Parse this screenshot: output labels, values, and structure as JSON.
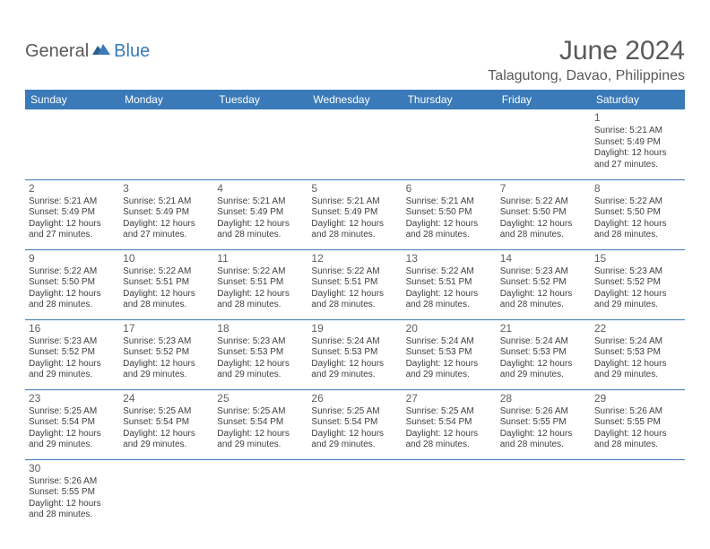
{
  "logo": {
    "part1": "General",
    "part2": "Blue"
  },
  "header": {
    "title": "June 2024",
    "location": "Talagutong, Davao, Philippines"
  },
  "colors": {
    "header_bg": "#3a7ab8",
    "header_text": "#ffffff",
    "row_border": "#3a7ab8",
    "text": "#404040",
    "title_color": "#595959"
  },
  "day_headers": [
    "Sunday",
    "Monday",
    "Tuesday",
    "Wednesday",
    "Thursday",
    "Friday",
    "Saturday"
  ],
  "weeks": [
    [
      null,
      null,
      null,
      null,
      null,
      null,
      {
        "d": "1",
        "sr": "Sunrise: 5:21 AM",
        "ss": "Sunset: 5:49 PM",
        "dl1": "Daylight: 12 hours",
        "dl2": "and 27 minutes."
      }
    ],
    [
      {
        "d": "2",
        "sr": "Sunrise: 5:21 AM",
        "ss": "Sunset: 5:49 PM",
        "dl1": "Daylight: 12 hours",
        "dl2": "and 27 minutes."
      },
      {
        "d": "3",
        "sr": "Sunrise: 5:21 AM",
        "ss": "Sunset: 5:49 PM",
        "dl1": "Daylight: 12 hours",
        "dl2": "and 27 minutes."
      },
      {
        "d": "4",
        "sr": "Sunrise: 5:21 AM",
        "ss": "Sunset: 5:49 PM",
        "dl1": "Daylight: 12 hours",
        "dl2": "and 28 minutes."
      },
      {
        "d": "5",
        "sr": "Sunrise: 5:21 AM",
        "ss": "Sunset: 5:49 PM",
        "dl1": "Daylight: 12 hours",
        "dl2": "and 28 minutes."
      },
      {
        "d": "6",
        "sr": "Sunrise: 5:21 AM",
        "ss": "Sunset: 5:50 PM",
        "dl1": "Daylight: 12 hours",
        "dl2": "and 28 minutes."
      },
      {
        "d": "7",
        "sr": "Sunrise: 5:22 AM",
        "ss": "Sunset: 5:50 PM",
        "dl1": "Daylight: 12 hours",
        "dl2": "and 28 minutes."
      },
      {
        "d": "8",
        "sr": "Sunrise: 5:22 AM",
        "ss": "Sunset: 5:50 PM",
        "dl1": "Daylight: 12 hours",
        "dl2": "and 28 minutes."
      }
    ],
    [
      {
        "d": "9",
        "sr": "Sunrise: 5:22 AM",
        "ss": "Sunset: 5:50 PM",
        "dl1": "Daylight: 12 hours",
        "dl2": "and 28 minutes."
      },
      {
        "d": "10",
        "sr": "Sunrise: 5:22 AM",
        "ss": "Sunset: 5:51 PM",
        "dl1": "Daylight: 12 hours",
        "dl2": "and 28 minutes."
      },
      {
        "d": "11",
        "sr": "Sunrise: 5:22 AM",
        "ss": "Sunset: 5:51 PM",
        "dl1": "Daylight: 12 hours",
        "dl2": "and 28 minutes."
      },
      {
        "d": "12",
        "sr": "Sunrise: 5:22 AM",
        "ss": "Sunset: 5:51 PM",
        "dl1": "Daylight: 12 hours",
        "dl2": "and 28 minutes."
      },
      {
        "d": "13",
        "sr": "Sunrise: 5:22 AM",
        "ss": "Sunset: 5:51 PM",
        "dl1": "Daylight: 12 hours",
        "dl2": "and 28 minutes."
      },
      {
        "d": "14",
        "sr": "Sunrise: 5:23 AM",
        "ss": "Sunset: 5:52 PM",
        "dl1": "Daylight: 12 hours",
        "dl2": "and 28 minutes."
      },
      {
        "d": "15",
        "sr": "Sunrise: 5:23 AM",
        "ss": "Sunset: 5:52 PM",
        "dl1": "Daylight: 12 hours",
        "dl2": "and 29 minutes."
      }
    ],
    [
      {
        "d": "16",
        "sr": "Sunrise: 5:23 AM",
        "ss": "Sunset: 5:52 PM",
        "dl1": "Daylight: 12 hours",
        "dl2": "and 29 minutes."
      },
      {
        "d": "17",
        "sr": "Sunrise: 5:23 AM",
        "ss": "Sunset: 5:52 PM",
        "dl1": "Daylight: 12 hours",
        "dl2": "and 29 minutes."
      },
      {
        "d": "18",
        "sr": "Sunrise: 5:23 AM",
        "ss": "Sunset: 5:53 PM",
        "dl1": "Daylight: 12 hours",
        "dl2": "and 29 minutes."
      },
      {
        "d": "19",
        "sr": "Sunrise: 5:24 AM",
        "ss": "Sunset: 5:53 PM",
        "dl1": "Daylight: 12 hours",
        "dl2": "and 29 minutes."
      },
      {
        "d": "20",
        "sr": "Sunrise: 5:24 AM",
        "ss": "Sunset: 5:53 PM",
        "dl1": "Daylight: 12 hours",
        "dl2": "and 29 minutes."
      },
      {
        "d": "21",
        "sr": "Sunrise: 5:24 AM",
        "ss": "Sunset: 5:53 PM",
        "dl1": "Daylight: 12 hours",
        "dl2": "and 29 minutes."
      },
      {
        "d": "22",
        "sr": "Sunrise: 5:24 AM",
        "ss": "Sunset: 5:53 PM",
        "dl1": "Daylight: 12 hours",
        "dl2": "and 29 minutes."
      }
    ],
    [
      {
        "d": "23",
        "sr": "Sunrise: 5:25 AM",
        "ss": "Sunset: 5:54 PM",
        "dl1": "Daylight: 12 hours",
        "dl2": "and 29 minutes."
      },
      {
        "d": "24",
        "sr": "Sunrise: 5:25 AM",
        "ss": "Sunset: 5:54 PM",
        "dl1": "Daylight: 12 hours",
        "dl2": "and 29 minutes."
      },
      {
        "d": "25",
        "sr": "Sunrise: 5:25 AM",
        "ss": "Sunset: 5:54 PM",
        "dl1": "Daylight: 12 hours",
        "dl2": "and 29 minutes."
      },
      {
        "d": "26",
        "sr": "Sunrise: 5:25 AM",
        "ss": "Sunset: 5:54 PM",
        "dl1": "Daylight: 12 hours",
        "dl2": "and 29 minutes."
      },
      {
        "d": "27",
        "sr": "Sunrise: 5:25 AM",
        "ss": "Sunset: 5:54 PM",
        "dl1": "Daylight: 12 hours",
        "dl2": "and 28 minutes."
      },
      {
        "d": "28",
        "sr": "Sunrise: 5:26 AM",
        "ss": "Sunset: 5:55 PM",
        "dl1": "Daylight: 12 hours",
        "dl2": "and 28 minutes."
      },
      {
        "d": "29",
        "sr": "Sunrise: 5:26 AM",
        "ss": "Sunset: 5:55 PM",
        "dl1": "Daylight: 12 hours",
        "dl2": "and 28 minutes."
      }
    ],
    [
      {
        "d": "30",
        "sr": "Sunrise: 5:26 AM",
        "ss": "Sunset: 5:55 PM",
        "dl1": "Daylight: 12 hours",
        "dl2": "and 28 minutes."
      },
      null,
      null,
      null,
      null,
      null,
      null
    ]
  ]
}
